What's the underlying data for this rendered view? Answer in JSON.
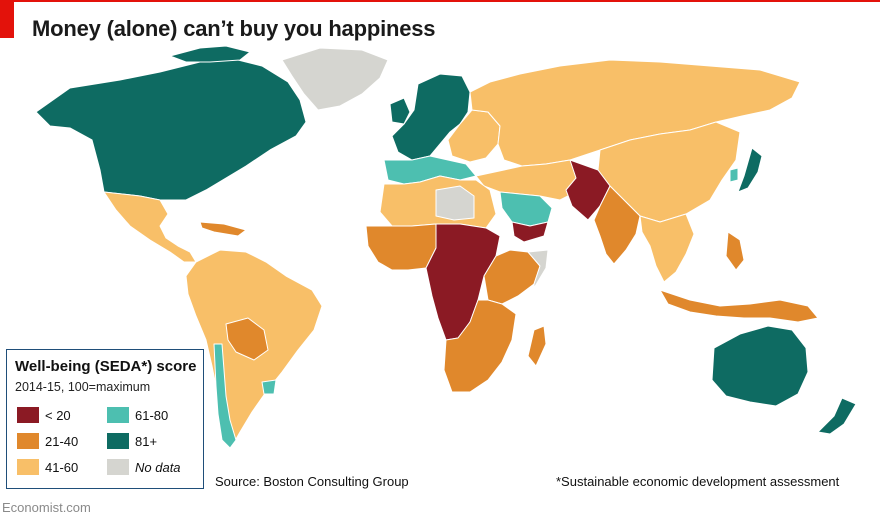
{
  "header": {
    "title": "Money (alone) can’t buy you happiness"
  },
  "legend": {
    "title": "Well-being (SEDA*) score",
    "subtitle": "2014-15, 100=maximum",
    "items": [
      {
        "label": "< 20",
        "color": "#8b1a24"
      },
      {
        "label": "61-80",
        "color": "#4dbfb0"
      },
      {
        "label": "21-40",
        "color": "#e0882c"
      },
      {
        "label": "81+",
        "color": "#0e6b62"
      },
      {
        "label": "41-60",
        "color": "#f8bf68"
      },
      {
        "label": "No data",
        "color": "#d5d5d0"
      }
    ]
  },
  "footer": {
    "source": "Source: Boston Consulting Group",
    "footnote": "*Sustainable economic development assessment",
    "brand": "Economist.com"
  },
  "map_regions": [
    {
      "name": "North America",
      "category": "81+"
    },
    {
      "name": "Greenland",
      "category": "No data"
    },
    {
      "name": "Mexico & Central America",
      "category": "41-60"
    },
    {
      "name": "Caribbean",
      "category": "21-40"
    },
    {
      "name": "South America",
      "category": "41-60"
    },
    {
      "name": "Bolivia & Paraguay",
      "category": "21-40"
    },
    {
      "name": "Chile & Uruguay",
      "category": "61-80"
    },
    {
      "name": "Northern & Western Europe",
      "category": "81+"
    },
    {
      "name": "Southern Europe",
      "category": "61-80"
    },
    {
      "name": "Eastern Europe",
      "category": "41-60"
    },
    {
      "name": "Russia & Central Asia",
      "category": "41-60"
    },
    {
      "name": "China & Mongolia",
      "category": "41-60"
    },
    {
      "name": "Japan",
      "category": "81+"
    },
    {
      "name": "South Korea",
      "category": "61-80"
    },
    {
      "name": "Middle East",
      "category": "41-60"
    },
    {
      "name": "Gulf States",
      "category": "61-80"
    },
    {
      "name": "Yemen",
      "category": "< 20"
    },
    {
      "name": "Pakistan & Afghanistan",
      "category": "< 20"
    },
    {
      "name": "India & Bangladesh",
      "category": "21-40"
    },
    {
      "name": "Southeast Asia",
      "category": "41-60"
    },
    {
      "name": "Indonesia & Philippines",
      "category": "21-40"
    },
    {
      "name": "North Africa",
      "category": "41-60"
    },
    {
      "name": "Libya",
      "category": "No data"
    },
    {
      "name": "West Africa",
      "category": "21-40"
    },
    {
      "name": "Central Africa",
      "category": "< 20"
    },
    {
      "name": "East Africa",
      "category": "21-40"
    },
    {
      "name": "Somalia",
      "category": "No data"
    },
    {
      "name": "Southern Africa",
      "category": "21-40"
    },
    {
      "name": "Madagascar",
      "category": "21-40"
    },
    {
      "name": "Australia & New Zealand",
      "category": "81+"
    }
  ]
}
